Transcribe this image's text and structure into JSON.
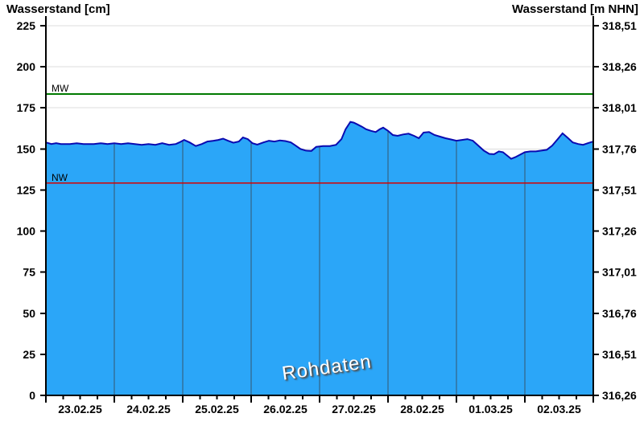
{
  "chart_data": {
    "type": "area",
    "title_left": "Wasserstand [cm]",
    "title_right": "Wasserstand [m NHN]",
    "watermark": "Rohdaten",
    "days": 8,
    "x_labels": [
      "23.02.25",
      "24.02.25",
      "25.02.25",
      "26.02.25",
      "27.02.25",
      "28.02.25",
      "01.03.25",
      "02.03.25"
    ],
    "y_left_ticks": [
      0,
      25,
      50,
      75,
      100,
      125,
      150,
      175,
      200,
      225
    ],
    "y_right_ticks_top_down": [
      "318,51",
      "318,26",
      "318,01",
      "317,76",
      "317,51",
      "317,26",
      "317,01",
      "316,76",
      "316,51",
      "316,26"
    ],
    "ylim": [
      0,
      225
    ],
    "grid": {
      "horizontal": true,
      "vertical_day_lines_inside_area": true
    },
    "reference_lines": [
      {
        "label": "MW",
        "cm": 183.4,
        "color": "#007A00"
      },
      {
        "label": "NW",
        "cm": 129.2,
        "color": "#D40000"
      }
    ],
    "series": [
      {
        "name": "Wasserstand Rohdaten",
        "unit": "cm",
        "points": [
          [
            0.0,
            154.0
          ],
          [
            0.08,
            153.0
          ],
          [
            0.15,
            153.5
          ],
          [
            0.22,
            153.0
          ],
          [
            0.35,
            153.0
          ],
          [
            0.45,
            153.5
          ],
          [
            0.55,
            153.0
          ],
          [
            0.7,
            153.0
          ],
          [
            0.8,
            153.5
          ],
          [
            0.9,
            153.0
          ],
          [
            1.0,
            153.5
          ],
          [
            1.1,
            153.0
          ],
          [
            1.2,
            153.5
          ],
          [
            1.3,
            153.0
          ],
          [
            1.4,
            152.5
          ],
          [
            1.5,
            153.0
          ],
          [
            1.6,
            152.5
          ],
          [
            1.7,
            153.5
          ],
          [
            1.8,
            152.5
          ],
          [
            1.9,
            153.0
          ],
          [
            1.95,
            154.0
          ],
          [
            2.02,
            155.5
          ],
          [
            2.1,
            154.0
          ],
          [
            2.19,
            151.8
          ],
          [
            2.28,
            153.0
          ],
          [
            2.36,
            154.5
          ],
          [
            2.45,
            155.0
          ],
          [
            2.52,
            155.5
          ],
          [
            2.59,
            156.3
          ],
          [
            2.66,
            155.0
          ],
          [
            2.74,
            153.8
          ],
          [
            2.82,
            154.5
          ],
          [
            2.88,
            157.0
          ],
          [
            2.95,
            156.0
          ],
          [
            3.02,
            153.5
          ],
          [
            3.09,
            152.6
          ],
          [
            3.18,
            154.0
          ],
          [
            3.26,
            155.0
          ],
          [
            3.34,
            154.5
          ],
          [
            3.42,
            155.2
          ],
          [
            3.5,
            154.8
          ],
          [
            3.58,
            154.0
          ],
          [
            3.65,
            152.0
          ],
          [
            3.72,
            150.0
          ],
          [
            3.8,
            149.0
          ],
          [
            3.88,
            148.8
          ],
          [
            3.95,
            151.3
          ],
          [
            4.05,
            151.8
          ],
          [
            4.15,
            151.8
          ],
          [
            4.24,
            152.5
          ],
          [
            4.32,
            156.0
          ],
          [
            4.38,
            162.0
          ],
          [
            4.45,
            166.5
          ],
          [
            4.5,
            166.0
          ],
          [
            4.55,
            165.0
          ],
          [
            4.62,
            163.5
          ],
          [
            4.68,
            162.0
          ],
          [
            4.75,
            161.0
          ],
          [
            4.82,
            160.3
          ],
          [
            4.88,
            162.0
          ],
          [
            4.93,
            163.0
          ],
          [
            5.0,
            161.0
          ],
          [
            5.07,
            158.5
          ],
          [
            5.14,
            158.0
          ],
          [
            5.22,
            158.8
          ],
          [
            5.3,
            159.3
          ],
          [
            5.38,
            158.0
          ],
          [
            5.45,
            156.5
          ],
          [
            5.52,
            160.0
          ],
          [
            5.6,
            160.3
          ],
          [
            5.68,
            158.5
          ],
          [
            5.76,
            157.5
          ],
          [
            5.84,
            156.5
          ],
          [
            5.92,
            155.8
          ],
          [
            6.0,
            155.0
          ],
          [
            6.08,
            155.5
          ],
          [
            6.16,
            156.0
          ],
          [
            6.24,
            155.0
          ],
          [
            6.32,
            152.0
          ],
          [
            6.4,
            149.0
          ],
          [
            6.48,
            147.0
          ],
          [
            6.55,
            146.8
          ],
          [
            6.62,
            148.5
          ],
          [
            6.68,
            148.0
          ],
          [
            6.74,
            146.0
          ],
          [
            6.8,
            144.0
          ],
          [
            6.86,
            145.0
          ],
          [
            6.93,
            146.5
          ],
          [
            7.0,
            148.0
          ],
          [
            7.08,
            148.5
          ],
          [
            7.16,
            148.5
          ],
          [
            7.24,
            149.0
          ],
          [
            7.32,
            149.5
          ],
          [
            7.4,
            152.0
          ],
          [
            7.48,
            156.0
          ],
          [
            7.55,
            159.5
          ],
          [
            7.62,
            157.0
          ],
          [
            7.7,
            154.0
          ],
          [
            7.78,
            153.0
          ],
          [
            7.85,
            152.5
          ],
          [
            7.92,
            153.5
          ],
          [
            8.0,
            154.5
          ]
        ]
      }
    ],
    "colors": {
      "area_fill": "#2BA6F8",
      "edge_line": "#0A0AB0",
      "day_grid": "#35566E",
      "h_grid": "#DCDCDC",
      "axis": "#000000",
      "tick_text": "#000000",
      "watermark_text": "#FFFFFF"
    }
  }
}
